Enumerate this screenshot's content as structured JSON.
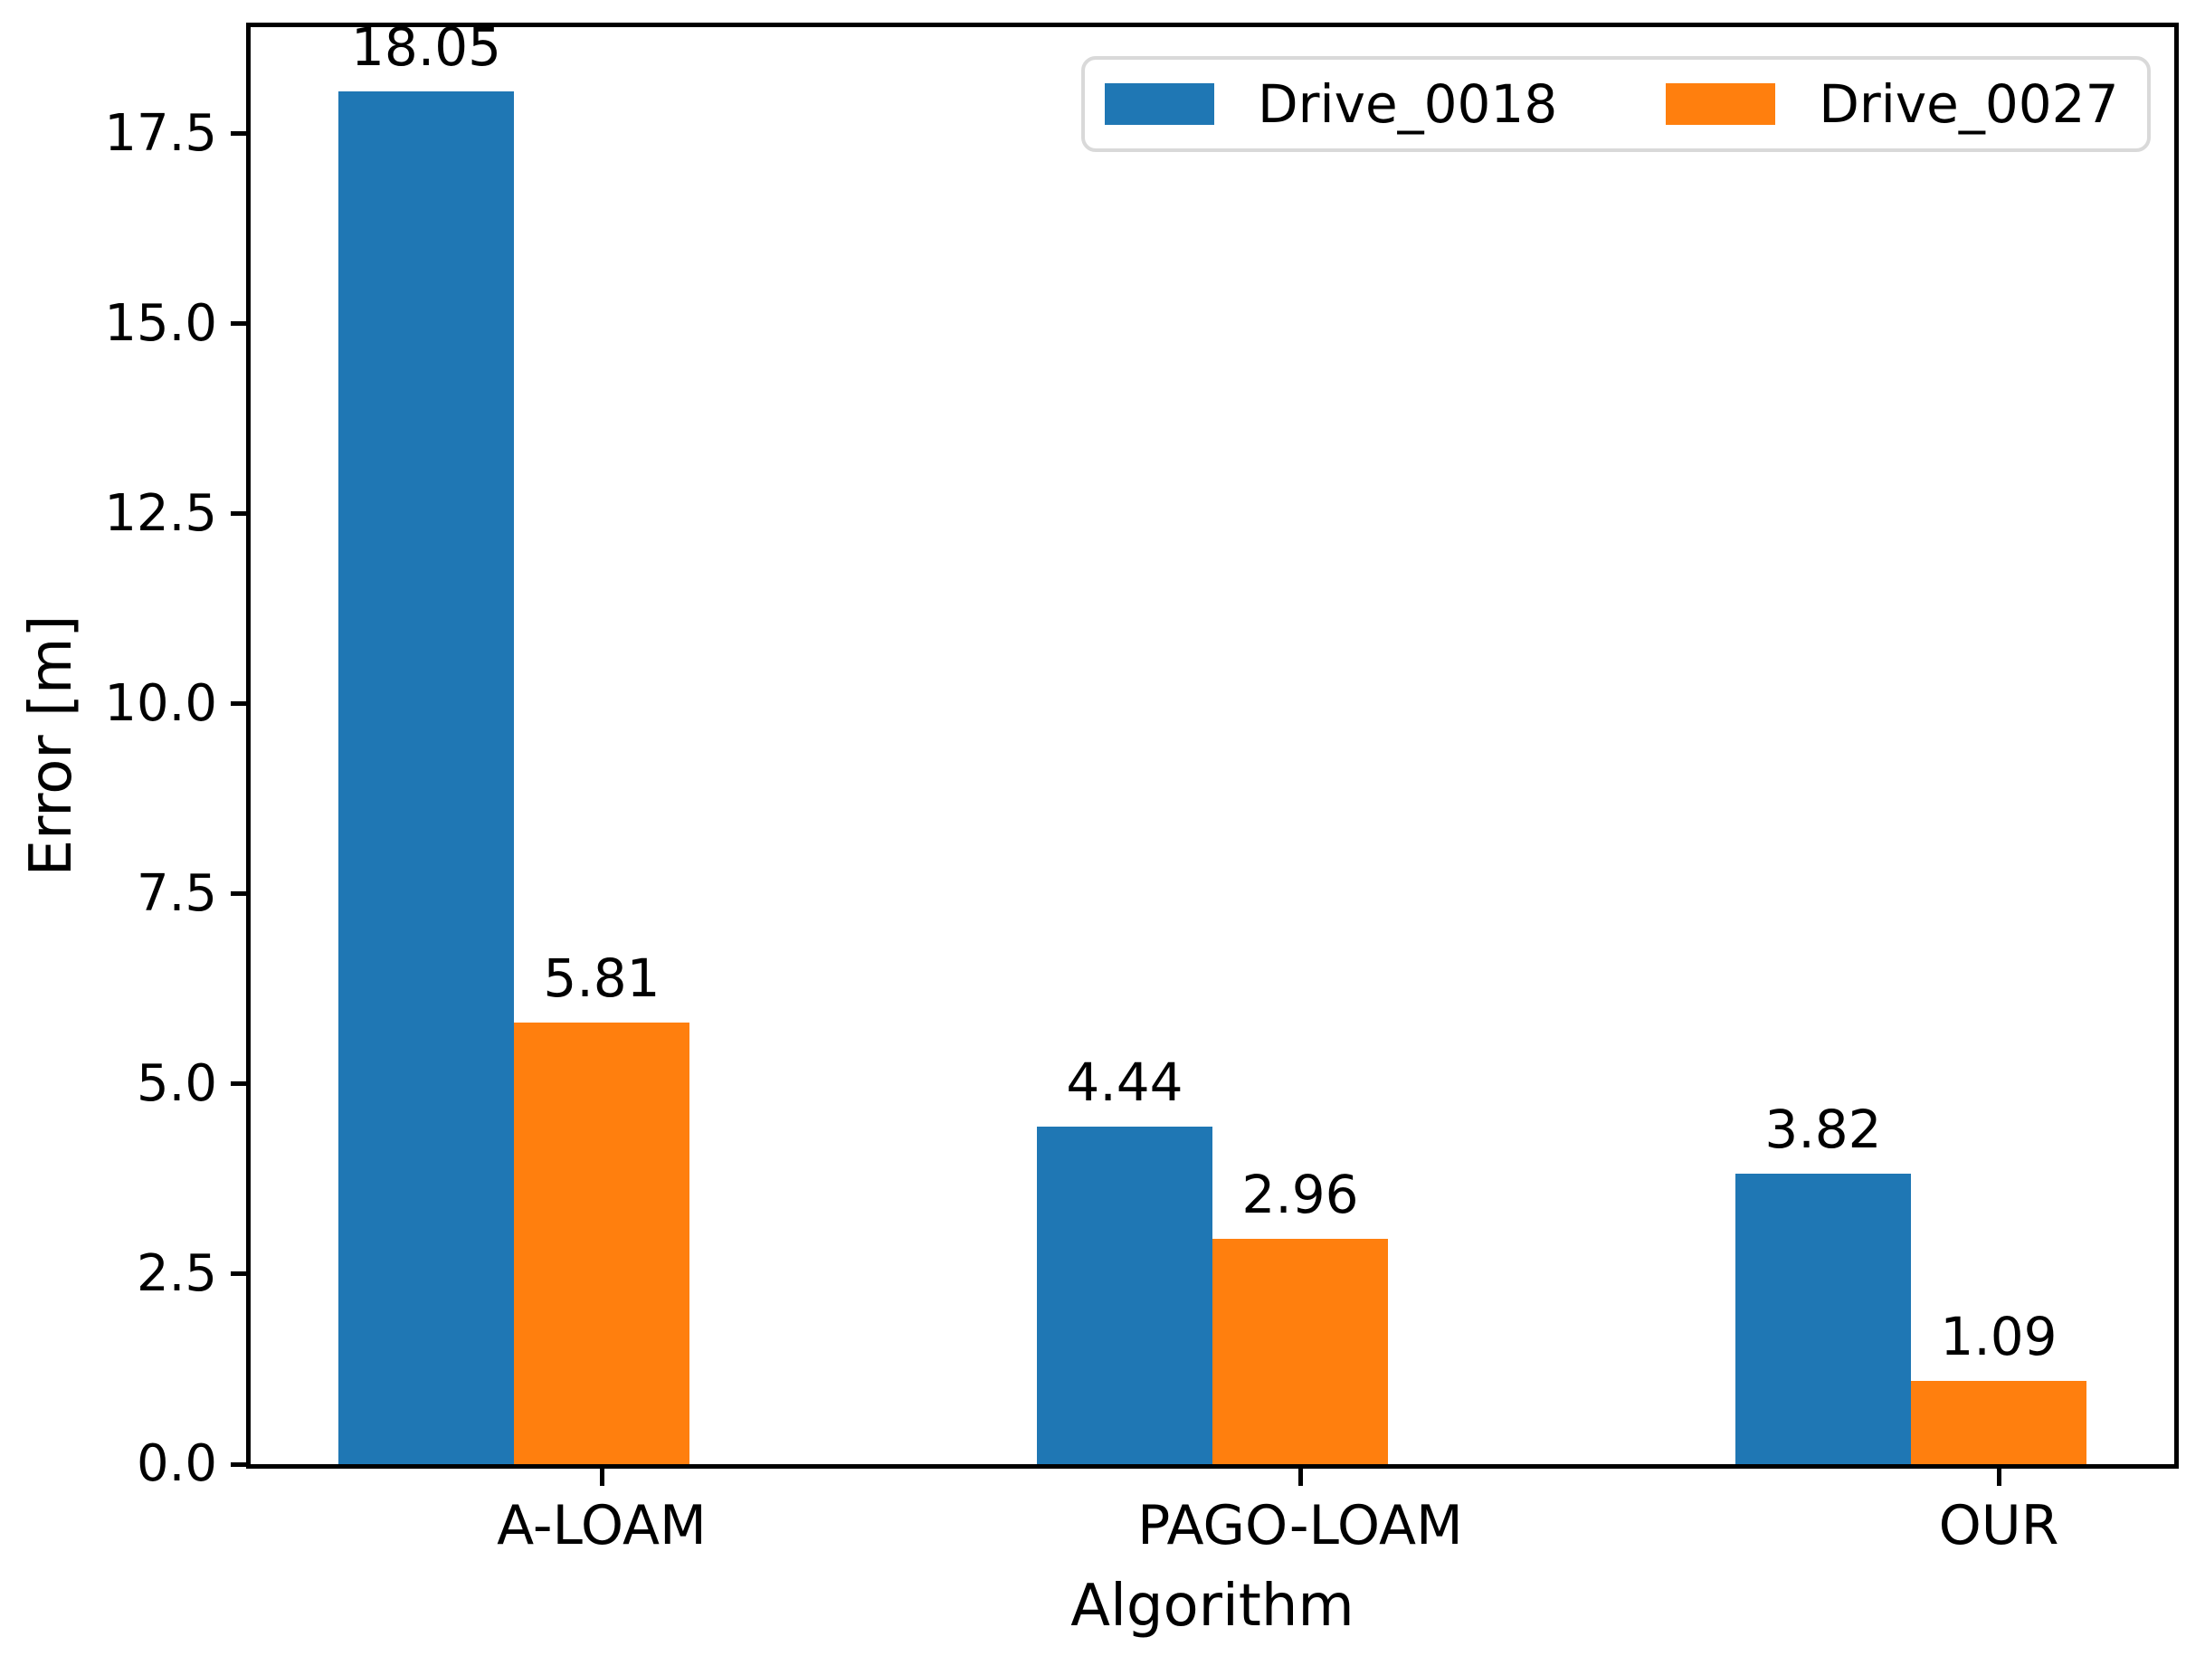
{
  "chart_data": {
    "type": "bar",
    "title": "",
    "xlabel": "Algorithm",
    "ylabel": "Error [m]",
    "categories": [
      "A-LOAM",
      "PAGO-LOAM",
      "OUR"
    ],
    "series": [
      {
        "name": "Drive_0018",
        "color": "#1f77b4",
        "values": [
          18.05,
          4.44,
          3.82
        ],
        "value_labels": [
          "18.05",
          "4.44",
          "3.82"
        ]
      },
      {
        "name": "Drive_0027",
        "color": "#ff7f0e",
        "values": [
          5.81,
          2.96,
          1.09
        ],
        "value_labels": [
          "5.81",
          "2.96",
          "1.09"
        ]
      }
    ],
    "ylim": [
      0,
      18.9
    ],
    "yticks": [
      0,
      2.5,
      5,
      7.5,
      10,
      12.5,
      15,
      17.5
    ],
    "ytick_labels": [
      "0.0",
      "2.5",
      "5.0",
      "7.5",
      "10.0",
      "12.5",
      "15.0",
      "17.5"
    ],
    "grid": false,
    "legend_position": "upper right",
    "bar_value_labels": true
  }
}
